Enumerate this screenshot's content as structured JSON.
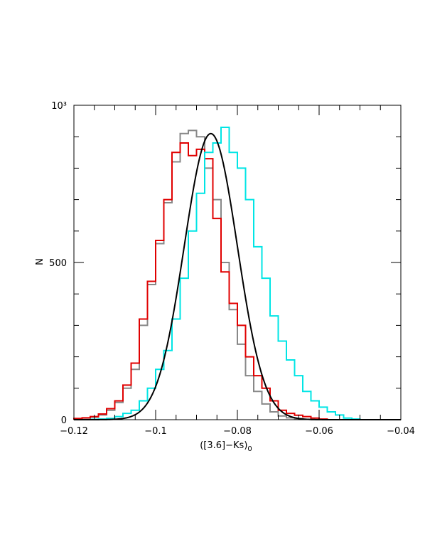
{
  "chart_data": {
    "type": "histogram",
    "xlabel": "([3.6]−Ks)",
    "xlabel_subscript": "0",
    "ylabel": "N",
    "xlim": [
      -0.12,
      -0.04
    ],
    "ylim": [
      0,
      1000
    ],
    "x_ticks": [
      -0.12,
      -0.1,
      -0.08,
      -0.06,
      -0.04
    ],
    "x_tick_labels": [
      "−0.12",
      "−0.1",
      "−0.08",
      "−0.06",
      "−0.04"
    ],
    "y_ticks": [
      0,
      500,
      1000
    ],
    "y_tick_labels": [
      "0",
      "500",
      "10³"
    ],
    "bin_edges": [
      -0.122,
      -0.12,
      -0.118,
      -0.116,
      -0.114,
      -0.112,
      -0.11,
      -0.108,
      -0.106,
      -0.104,
      -0.102,
      -0.1,
      -0.098,
      -0.096,
      -0.094,
      -0.092,
      -0.09,
      -0.088,
      -0.086,
      -0.084,
      -0.082,
      -0.08,
      -0.078,
      -0.076,
      -0.074,
      -0.072,
      -0.07,
      -0.068,
      -0.066,
      -0.064,
      -0.062,
      -0.06,
      -0.058,
      -0.056,
      -0.054,
      -0.052,
      -0.05,
      -0.048
    ],
    "series": [
      {
        "color": "#888888",
        "values": [
          0,
          3,
          5,
          8,
          15,
          30,
          55,
          100,
          160,
          300,
          430,
          560,
          690,
          820,
          910,
          920,
          900,
          800,
          700,
          500,
          350,
          240,
          140,
          90,
          50,
          25,
          12,
          6,
          3,
          1,
          0,
          0,
          0,
          0,
          0,
          0,
          0
        ]
      },
      {
        "color": "#e00000",
        "values": [
          0,
          4,
          6,
          10,
          18,
          35,
          60,
          110,
          180,
          320,
          440,
          570,
          700,
          850,
          880,
          840,
          860,
          830,
          640,
          470,
          370,
          300,
          200,
          140,
          100,
          60,
          30,
          20,
          14,
          10,
          5,
          2,
          0,
          0,
          0,
          0,
          0
        ]
      },
      {
        "color": "#00e5e5",
        "values": [
          0,
          0,
          0,
          1,
          2,
          4,
          10,
          20,
          30,
          60,
          100,
          160,
          220,
          320,
          450,
          600,
          720,
          850,
          880,
          930,
          850,
          800,
          700,
          550,
          450,
          330,
          250,
          190,
          140,
          90,
          60,
          40,
          25,
          15,
          5,
          2,
          0
        ]
      }
    ],
    "fit_curve": {
      "type": "gaussian",
      "color": "#000000",
      "amplitude": 910,
      "mean": -0.0865,
      "sigma": 0.0065
    }
  }
}
